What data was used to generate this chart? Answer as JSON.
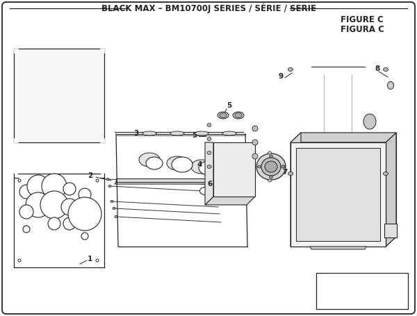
{
  "title": "BLACK MAX – BM10700J SERIES / SÉRIE / SERIE",
  "figure_label": "FIGURE C",
  "figura_label": "FIGURA C",
  "bg_color": "#ffffff",
  "line_color": "#222222",
  "title_fontsize": 8.5,
  "label_fontsize": 7.5,
  "figure_label_fontsize": 8.5
}
